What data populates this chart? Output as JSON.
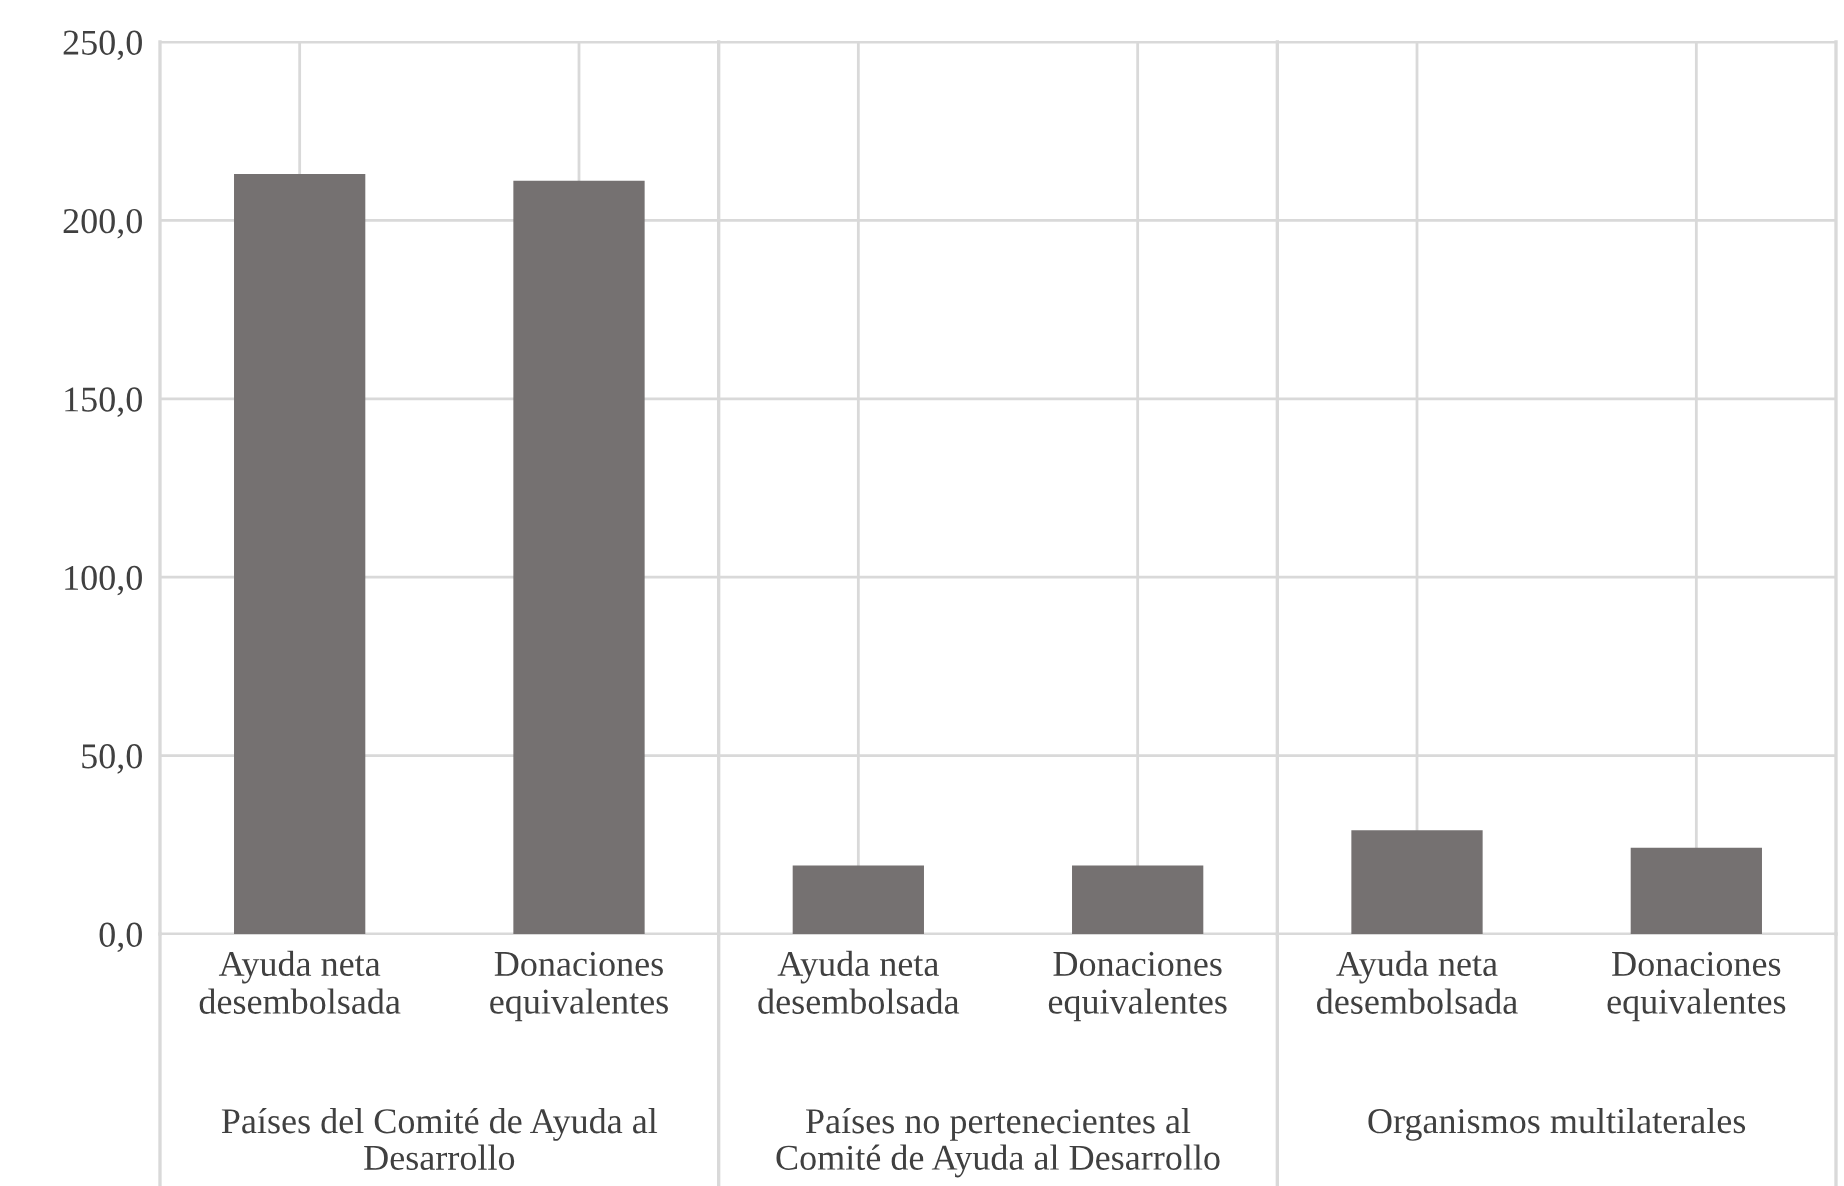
{
  "chart_data": {
    "type": "bar",
    "categories": [
      "Ayuda neta\ndesembolsada",
      "Donaciones\nequivalentes",
      "Ayuda neta\ndesembolsada",
      "Donaciones\nequivalentes",
      "Ayuda neta\ndesembolsada",
      "Donaciones\nequivalentes"
    ],
    "values": [
      213.0,
      211.1,
      19.2,
      19.2,
      29.1,
      24.2
    ],
    "color": "#757171",
    "annotations": [
      "Países del Comité de Ayuda al\nDesarrollo",
      "Países no pertenecientes al\nComité de Ayuda al Desarrollo",
      "Organismos multilaterales"
    ],
    "ylim": [
      0,
      250
    ],
    "yticks": [
      {
        "value": 0,
        "label": "0,0"
      },
      {
        "value": 50,
        "label": "50,0"
      },
      {
        "value": 100,
        "label": "100,0"
      },
      {
        "value": 150,
        "label": "150,0"
      },
      {
        "value": 200,
        "label": "200,0"
      },
      {
        "value": 250,
        "label": "250,0"
      }
    ],
    "grid": true,
    "legend": false
  }
}
